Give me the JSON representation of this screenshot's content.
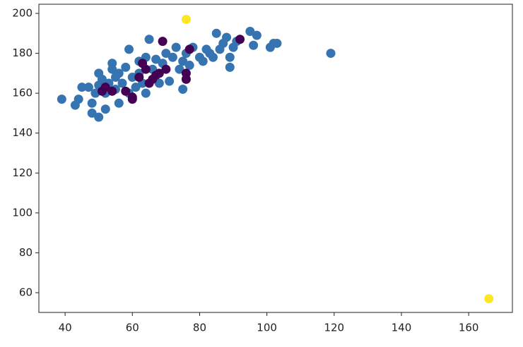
{
  "chart_data": {
    "type": "scatter",
    "xlim": [
      32.2,
      173
    ],
    "ylim": [
      50.1,
      204.6
    ],
    "xticks": [
      40,
      60,
      80,
      100,
      120,
      140,
      160
    ],
    "yticks": [
      60,
      80,
      100,
      120,
      140,
      160,
      180,
      200
    ],
    "series": [
      {
        "color": "#3574b0",
        "x": [
          39,
          43,
          44,
          45,
          47,
          48,
          48,
          49,
          50,
          50,
          50,
          51,
          52,
          52,
          53,
          54,
          54,
          55,
          55,
          56,
          56,
          57,
          58,
          59,
          59,
          60,
          61,
          62,
          62,
          63,
          64,
          64,
          65,
          66,
          67,
          68,
          69,
          70,
          71,
          72,
          73,
          74,
          75,
          75,
          76,
          77,
          78,
          80,
          81,
          82,
          83,
          84,
          85,
          86,
          87,
          88,
          89,
          89,
          90,
          91,
          95,
          96,
          97,
          101,
          102,
          103,
          119
        ],
        "values": [
          157,
          154,
          157,
          163,
          163,
          155,
          150,
          160,
          148,
          164,
          170,
          167,
          152,
          160,
          165,
          172,
          175,
          162,
          168,
          155,
          170,
          165,
          173,
          160,
          182,
          168,
          163,
          170,
          176,
          165,
          160,
          178,
          187,
          172,
          177,
          165,
          175,
          180,
          166,
          178,
          183,
          172,
          162,
          176,
          180,
          174,
          183,
          178,
          176,
          182,
          180,
          178,
          190,
          182,
          185,
          188,
          178,
          173,
          183,
          186,
          191,
          184,
          189,
          183,
          185,
          185,
          180
        ]
      },
      {
        "color": "#440154",
        "x": [
          69,
          92,
          77,
          63,
          68,
          76,
          76,
          64,
          62,
          66,
          52,
          54,
          51,
          58,
          60,
          60,
          67,
          70,
          65
        ],
        "values": [
          186,
          187,
          182,
          175,
          170,
          170,
          167,
          172,
          168,
          167,
          163,
          161,
          161,
          161,
          157,
          158,
          169,
          172,
          165
        ]
      },
      {
        "color": "#fde725",
        "x": [
          76,
          166
        ],
        "values": [
          197,
          57
        ]
      }
    ]
  }
}
